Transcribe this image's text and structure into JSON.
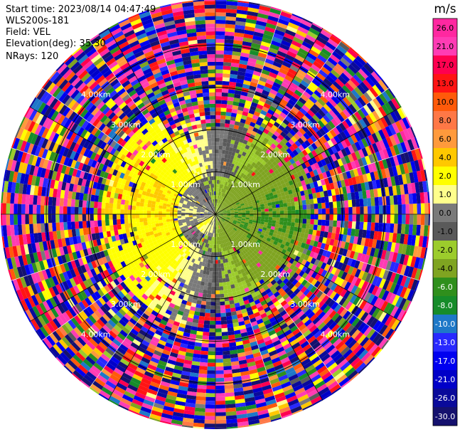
{
  "header": {
    "start_time": "Start time: 2023/08/14 04:47:49",
    "instrument": "WLS200s-181",
    "field": "Field: VEL",
    "elevation": "Elevation(deg): 35.30",
    "nrays": "NRays: 120"
  },
  "chart_data": {
    "type": "heatmap",
    "projection": "polar PPI",
    "field": "VEL",
    "units": "m/s",
    "nrays": 120,
    "range_rings_km": [
      1.0,
      2.0,
      3.0,
      4.0
    ],
    "range_ring_labels": [
      "1.00km",
      "2.00km",
      "3.00km",
      "4.00km"
    ],
    "max_range_km": 5.4,
    "colorbar": {
      "label": "m/s",
      "ticks": [
        "26.0",
        "21.0",
        "17.0",
        "13.0",
        "10.0",
        "8.0",
        "6.0",
        "4.0",
        "2.0",
        "1.0",
        "0.0",
        "-1.0",
        "-2.0",
        "-4.0",
        "-6.0",
        "-8.0",
        "-10.0",
        "-13.0",
        "-17.0",
        "-21.0",
        "-26.0",
        "-30.0"
      ],
      "levels": [
        -30,
        -26,
        -21,
        -17,
        -13,
        -10,
        -8,
        -6,
        -4,
        -2,
        -1,
        0,
        1,
        2,
        4,
        6,
        8,
        10,
        13,
        17,
        21,
        26,
        30
      ],
      "colors": [
        "#15116e",
        "#0a0a9a",
        "#0000c8",
        "#0000f0",
        "#2828ff",
        "#1e78c8",
        "#168c2a",
        "#2f8f1c",
        "#7fa421",
        "#9ccc2c",
        "#5a5a5a",
        "#7a7a7a",
        "#ffff8c",
        "#ffff00",
        "#ffc800",
        "#ff9a3c",
        "#ff7846",
        "#ff5a0a",
        "#ff1414",
        "#ff0050",
        "#ff3cb4",
        "#ff28a0"
      ]
    },
    "pattern": {
      "near_field_note": "receding west/south-west (yellow-orange), approaching east/north-east (green), folded noise beyond ~2.5 km"
    }
  }
}
